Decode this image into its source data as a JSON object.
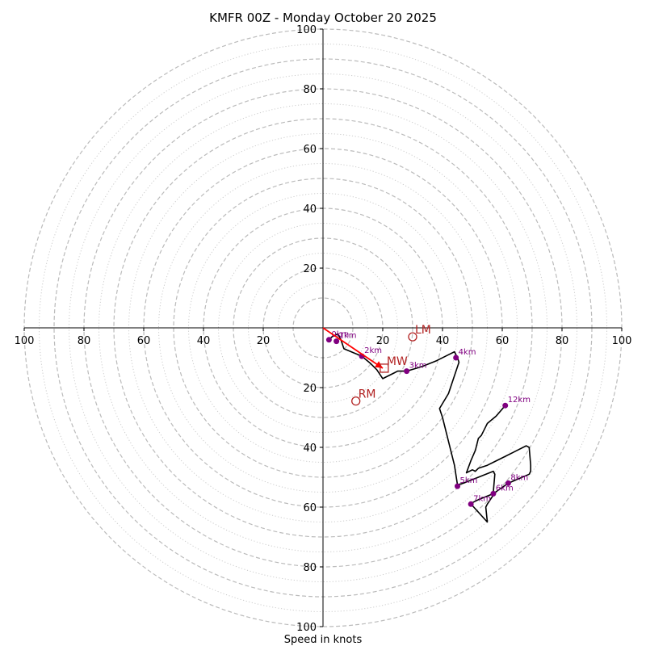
{
  "chart_data": {
    "type": "hodograph",
    "title": "KMFR 00Z - Monday October 20 2025",
    "xlabel": "Speed in knots",
    "ylabel": "",
    "range": [
      -100,
      100
    ],
    "x_ticks": [
      "100",
      "80",
      "60",
      "40",
      "20",
      "20",
      "40",
      "60",
      "80",
      "100"
    ],
    "x_tick_values": [
      -100,
      -80,
      -60,
      -40,
      -20,
      20,
      40,
      60,
      80,
      100
    ],
    "y_ticks": [
      "100",
      "80",
      "60",
      "40",
      "20",
      "20",
      "40",
      "60",
      "80",
      "100"
    ],
    "y_tick_values": [
      100,
      80,
      60,
      40,
      20,
      -20,
      -40,
      -60,
      -80,
      -100
    ],
    "rings_dashed": [
      10,
      20,
      30,
      40,
      50,
      60,
      70,
      80,
      90,
      100
    ],
    "rings_dotted": [
      15,
      25,
      35,
      45,
      55,
      65,
      75,
      85,
      95
    ],
    "colors": {
      "trace": "#000000",
      "height_points": "#800080",
      "storm_motion": "#b22222",
      "shear_vector": "#ff0000",
      "ring_dashed": "#bbbbbb",
      "ring_dotted": "#cccccc"
    },
    "trace": [
      [
        2,
        -4
      ],
      [
        3,
        -3
      ],
      [
        5,
        -2
      ],
      [
        6,
        -4
      ],
      [
        7,
        -7
      ],
      [
        13,
        -9.5
      ],
      [
        16,
        -12
      ],
      [
        18,
        -14
      ],
      [
        20,
        -17
      ],
      [
        24,
        -15
      ],
      [
        25,
        -14.5
      ],
      [
        28,
        -14.5
      ],
      [
        33,
        -13
      ],
      [
        38,
        -11
      ],
      [
        42,
        -9
      ],
      [
        44,
        -8
      ],
      [
        45,
        -10
      ],
      [
        45.5,
        -11.5
      ],
      [
        44,
        -16
      ],
      [
        42,
        -22
      ],
      [
        39,
        -27
      ],
      [
        40,
        -30
      ],
      [
        42,
        -38
      ],
      [
        44,
        -46
      ],
      [
        45,
        -52.5
      ],
      [
        47,
        -52
      ],
      [
        52,
        -50
      ],
      [
        57,
        -48
      ],
      [
        57.5,
        -49
      ],
      [
        57,
        -55
      ],
      [
        57,
        -56
      ],
      [
        55,
        -59
      ],
      [
        54.5,
        -60
      ],
      [
        55,
        -65
      ],
      [
        50,
        -59.5
      ],
      [
        49,
        -59
      ],
      [
        52,
        -57.5
      ],
      [
        57,
        -55.5
      ],
      [
        62,
        -52
      ],
      [
        69,
        -49
      ],
      [
        69.5,
        -48
      ],
      [
        69.5,
        -46
      ],
      [
        69,
        -40
      ],
      [
        68,
        -39.5
      ],
      [
        65,
        -41
      ],
      [
        60,
        -43.5
      ],
      [
        57,
        -45
      ],
      [
        55,
        -46
      ],
      [
        52,
        -47
      ],
      [
        51,
        -48
      ],
      [
        50,
        -47.5
      ],
      [
        48,
        -48.5
      ],
      [
        49.5,
        -44.5
      ],
      [
        51,
        -41
      ],
      [
        52,
        -37
      ],
      [
        53,
        -36
      ],
      [
        54,
        -34
      ],
      [
        55,
        -32
      ],
      [
        58,
        -29.5
      ],
      [
        61,
        -26
      ]
    ],
    "height_points": [
      {
        "label": "0km",
        "u": 2,
        "v": -4
      },
      {
        "label": "1km",
        "u": 4.5,
        "v": -4.5
      },
      {
        "label": "2km",
        "u": 13,
        "v": -9.5
      },
      {
        "label": "3km",
        "u": 28,
        "v": -14.5
      },
      {
        "label": "4km",
        "u": 44.5,
        "v": -10
      },
      {
        "label": "5km",
        "u": 45,
        "v": -53
      },
      {
        "label": "6km",
        "u": 57,
        "v": -55.5
      },
      {
        "label": "7km",
        "u": 49.5,
        "v": -59
      },
      {
        "label": "8km",
        "u": 62,
        "v": -52
      },
      {
        "label": "12km",
        "u": 61,
        "v": -26
      }
    ],
    "storm_motions": [
      {
        "label": "LM",
        "u": 30,
        "v": -3,
        "marker": "circle"
      },
      {
        "label": "MW",
        "u": 20.5,
        "v": -13.5,
        "marker": "square"
      },
      {
        "label": "RM",
        "u": 11,
        "v": -24.5,
        "marker": "circle"
      }
    ],
    "shear_vector": {
      "from": [
        0,
        0
      ],
      "to": [
        20,
        -13.5
      ]
    }
  }
}
